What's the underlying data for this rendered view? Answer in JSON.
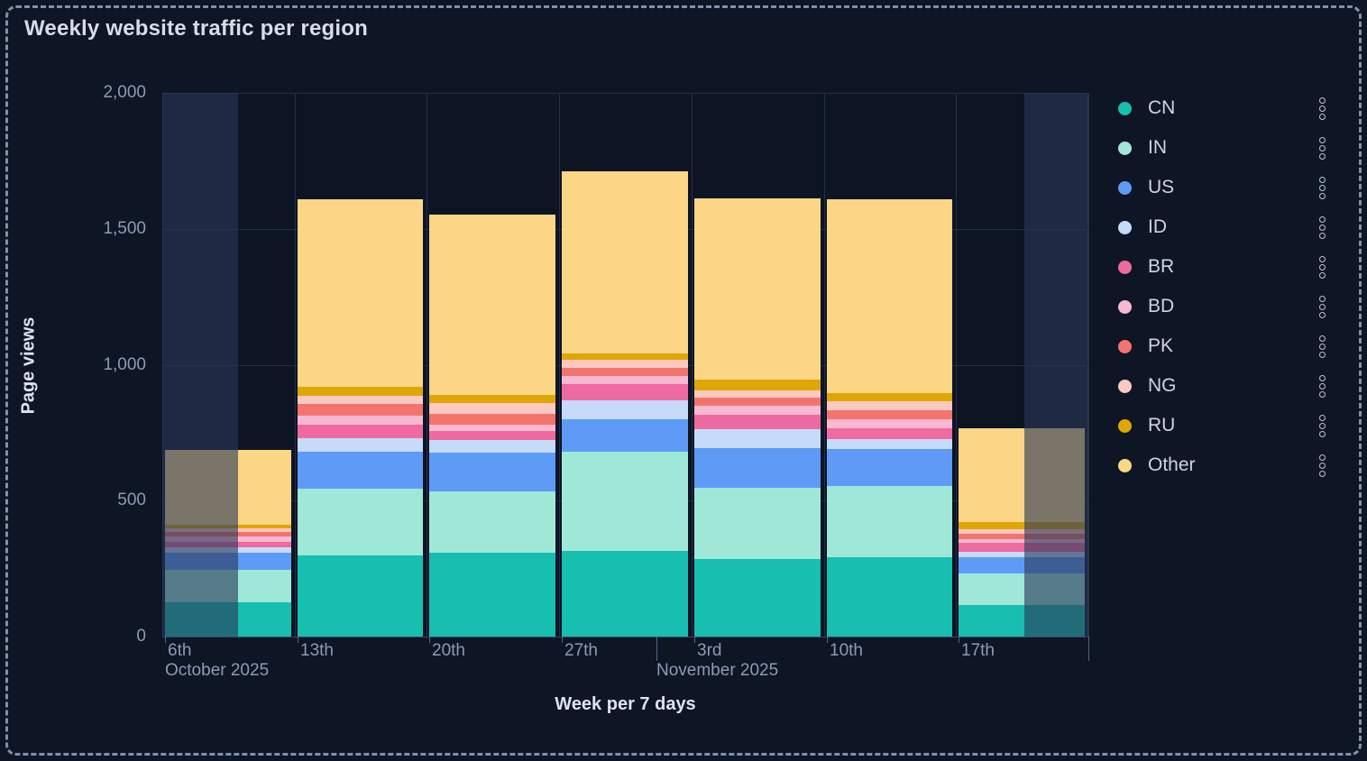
{
  "title": "Weekly website traffic per region",
  "panel": {
    "background": "#0e1525",
    "border_color": "#8191ab"
  },
  "legend": {
    "position": "right",
    "menu_icon": "kebab-menu-icon"
  },
  "chart_data": {
    "type": "bar",
    "stacked": true,
    "title": "Weekly website traffic per region",
    "xlabel": "Week per 7 days",
    "ylabel": "Page views",
    "ylim": [
      0,
      2000
    ],
    "y_tick_values": [
      0,
      500,
      1000,
      1500,
      2000
    ],
    "y_ticks": [
      "0",
      "500",
      "1,000",
      "1,500",
      "2,000"
    ],
    "grid": true,
    "legend_position": "right",
    "categories": [
      "6th",
      "13th",
      "20th",
      "27th",
      "3rd",
      "10th",
      "17th"
    ],
    "month_labels": [
      {
        "label": "October 2025",
        "column_pos": 0
      },
      {
        "label": "November 2025",
        "column_pos": 3.714
      }
    ],
    "series": [
      {
        "name": "CN",
        "color": "#16bfb0",
        "values": [
          125,
          299,
          307,
          316,
          285,
          291,
          116
        ]
      },
      {
        "name": "IN",
        "color": "#9fe8d8",
        "values": [
          122,
          246,
          228,
          365,
          263,
          262,
          116
        ]
      },
      {
        "name": "US",
        "color": "#5d9bf7",
        "values": [
          63,
          136,
          141,
          120,
          147,
          136,
          61
        ]
      },
      {
        "name": "ID",
        "color": "#c6dbfa",
        "values": [
          20,
          50,
          48,
          69,
          69,
          39,
          19
        ]
      },
      {
        "name": "BR",
        "color": "#ee6a9f",
        "values": [
          20,
          50,
          33,
          59,
          53,
          39,
          33
        ]
      },
      {
        "name": "BD",
        "color": "#f8b9d0",
        "values": [
          17,
          33,
          24,
          30,
          33,
          32,
          14
        ]
      },
      {
        "name": "PK",
        "color": "#f3746c",
        "values": [
          17,
          41,
          37,
          30,
          28,
          33,
          19
        ]
      },
      {
        "name": "NG",
        "color": "#fcc9c1",
        "values": [
          13,
          31,
          41,
          29,
          28,
          33,
          18
        ]
      },
      {
        "name": "RU",
        "color": "#e0a606",
        "values": [
          13,
          33,
          29,
          23,
          41,
          31,
          24
        ]
      },
      {
        "name": "Other",
        "color": "#fbd685",
        "values": [
          276,
          691,
          664,
          671,
          664,
          714,
          346
        ]
      }
    ],
    "dimmed_regions_frac": [
      [
        0,
        0.082
      ],
      [
        0.931,
        1.0
      ]
    ]
  }
}
